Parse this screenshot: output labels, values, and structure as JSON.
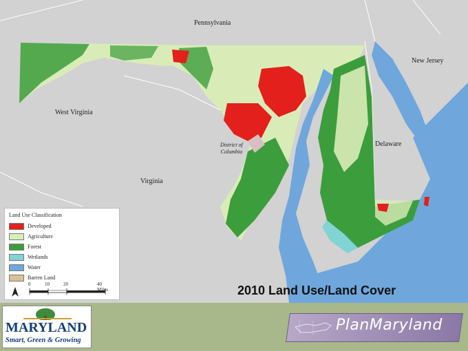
{
  "map": {
    "title": "2010 Land Use/Land Cover",
    "labels": {
      "pennsylvania": "Pennsylvania",
      "new_jersey": "New Jersey",
      "west_virginia": "West Virginia",
      "virginia": "Virginia",
      "delaware": "Delaware",
      "dc_line1": "District of",
      "dc_line2": "Columbia"
    }
  },
  "legend": {
    "title": "Land Use Classification",
    "items": [
      {
        "label": "Developed",
        "color": "#e3201b"
      },
      {
        "label": "Agriculture",
        "color": "#d9ecb8"
      },
      {
        "label": "Forest",
        "color": "#3c9d3c"
      },
      {
        "label": "Wetlands",
        "color": "#82d3d3"
      },
      {
        "label": "Water",
        "color": "#6fa7dc"
      },
      {
        "label": "Barren Land",
        "color": "#d8c29a"
      }
    ],
    "scale": {
      "ticks": [
        "0",
        "10",
        "20",
        "40 Miles"
      ],
      "north_arrow": "N"
    }
  },
  "footer": {
    "maryland_logo": {
      "word": "MARYLAND",
      "tagline": "Smart, Green & Growing"
    },
    "planmaryland_logo": {
      "text": "PlanMaryland"
    }
  },
  "colors": {
    "background_states": "#d2d2d2",
    "footer": "#a8b88b",
    "water": "#6fa7dc",
    "developed": "#e3201b",
    "forest": "#3c9d3c",
    "agriculture": "#d9ecb8"
  }
}
